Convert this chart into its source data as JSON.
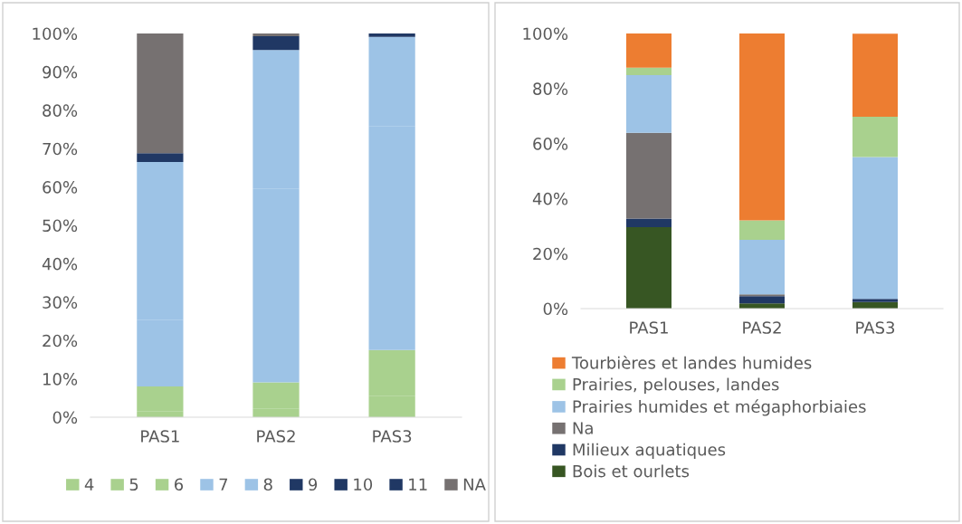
{
  "chart_data": [
    {
      "type": "bar",
      "stacked": true,
      "categories": [
        "PAS1",
        "PAS2",
        "PAS3"
      ],
      "ylim": [
        0,
        100
      ],
      "yticks": [
        {
          "value": 0,
          "label": "0%"
        },
        {
          "value": 10,
          "label": "10%"
        },
        {
          "value": 20,
          "label": "20%"
        },
        {
          "value": 30,
          "label": "30%"
        },
        {
          "value": 40,
          "label": "40%"
        },
        {
          "value": 50,
          "label": "50%"
        },
        {
          "value": 60,
          "label": "60%"
        },
        {
          "value": 70,
          "label": "70%"
        },
        {
          "value": 80,
          "label": "80%"
        },
        {
          "value": 90,
          "label": "90%"
        },
        {
          "value": 100,
          "label": "100%"
        }
      ],
      "grid": false,
      "legend": "bottom",
      "series": [
        {
          "name": "4",
          "color": "#a9d18e",
          "values": [
            1.6,
            2.3,
            5.5
          ]
        },
        {
          "name": "5",
          "color": "#a9d18e",
          "values": [
            6.4,
            6.8,
            12.0
          ]
        },
        {
          "name": "6",
          "color": "#a9d18e",
          "values": [
            0,
            0,
            0
          ]
        },
        {
          "name": "7",
          "color": "#9dc3e6",
          "values": [
            17.3,
            50.5,
            58.4
          ]
        },
        {
          "name": "8",
          "color": "#9dc3e6",
          "values": [
            41.2,
            36.1,
            23.2
          ]
        },
        {
          "name": "9",
          "color": "#203864",
          "values": [
            2.3,
            3.6,
            0.9
          ]
        },
        {
          "name": "10",
          "color": "#203864",
          "values": [
            0,
            0,
            0
          ]
        },
        {
          "name": "11",
          "color": "#203864",
          "values": [
            0,
            0,
            0
          ]
        },
        {
          "name": "NA",
          "color": "#767171",
          "values": [
            31.2,
            0.7,
            0
          ]
        }
      ]
    },
    {
      "type": "bar",
      "stacked": true,
      "categories": [
        "PAS1",
        "PAS2",
        "PAS3"
      ],
      "ylim": [
        0,
        100
      ],
      "yticks": [
        {
          "value": 0,
          "label": "0%"
        },
        {
          "value": 20,
          "label": "20%"
        },
        {
          "value": 40,
          "label": "40%"
        },
        {
          "value": 60,
          "label": "60%"
        },
        {
          "value": 80,
          "label": "80%"
        },
        {
          "value": 100,
          "label": "100%"
        }
      ],
      "grid": false,
      "legend": "bottom",
      "series": [
        {
          "name": "Bois et ourlets",
          "color": "#375623",
          "values": [
            29.6,
            1.9,
            2.4
          ]
        },
        {
          "name": "Milieux aquatiques",
          "color": "#203864",
          "values": [
            3.1,
            2.6,
            1.1
          ]
        },
        {
          "name": "Na",
          "color": "#767171",
          "values": [
            31.2,
            0.7,
            0
          ]
        },
        {
          "name": "Prairies humides et mégaphorbiaies",
          "color": "#9dc3e6",
          "values": [
            21.0,
            19.8,
            51.6
          ]
        },
        {
          "name": "Prairies, pelouses, landes",
          "color": "#a9d18e",
          "values": [
            2.7,
            7.1,
            14.6
          ]
        },
        {
          "name": "Tourbières et landes humides",
          "color": "#ed7d31",
          "values": [
            12.4,
            67.9,
            30.2
          ]
        }
      ]
    }
  ]
}
